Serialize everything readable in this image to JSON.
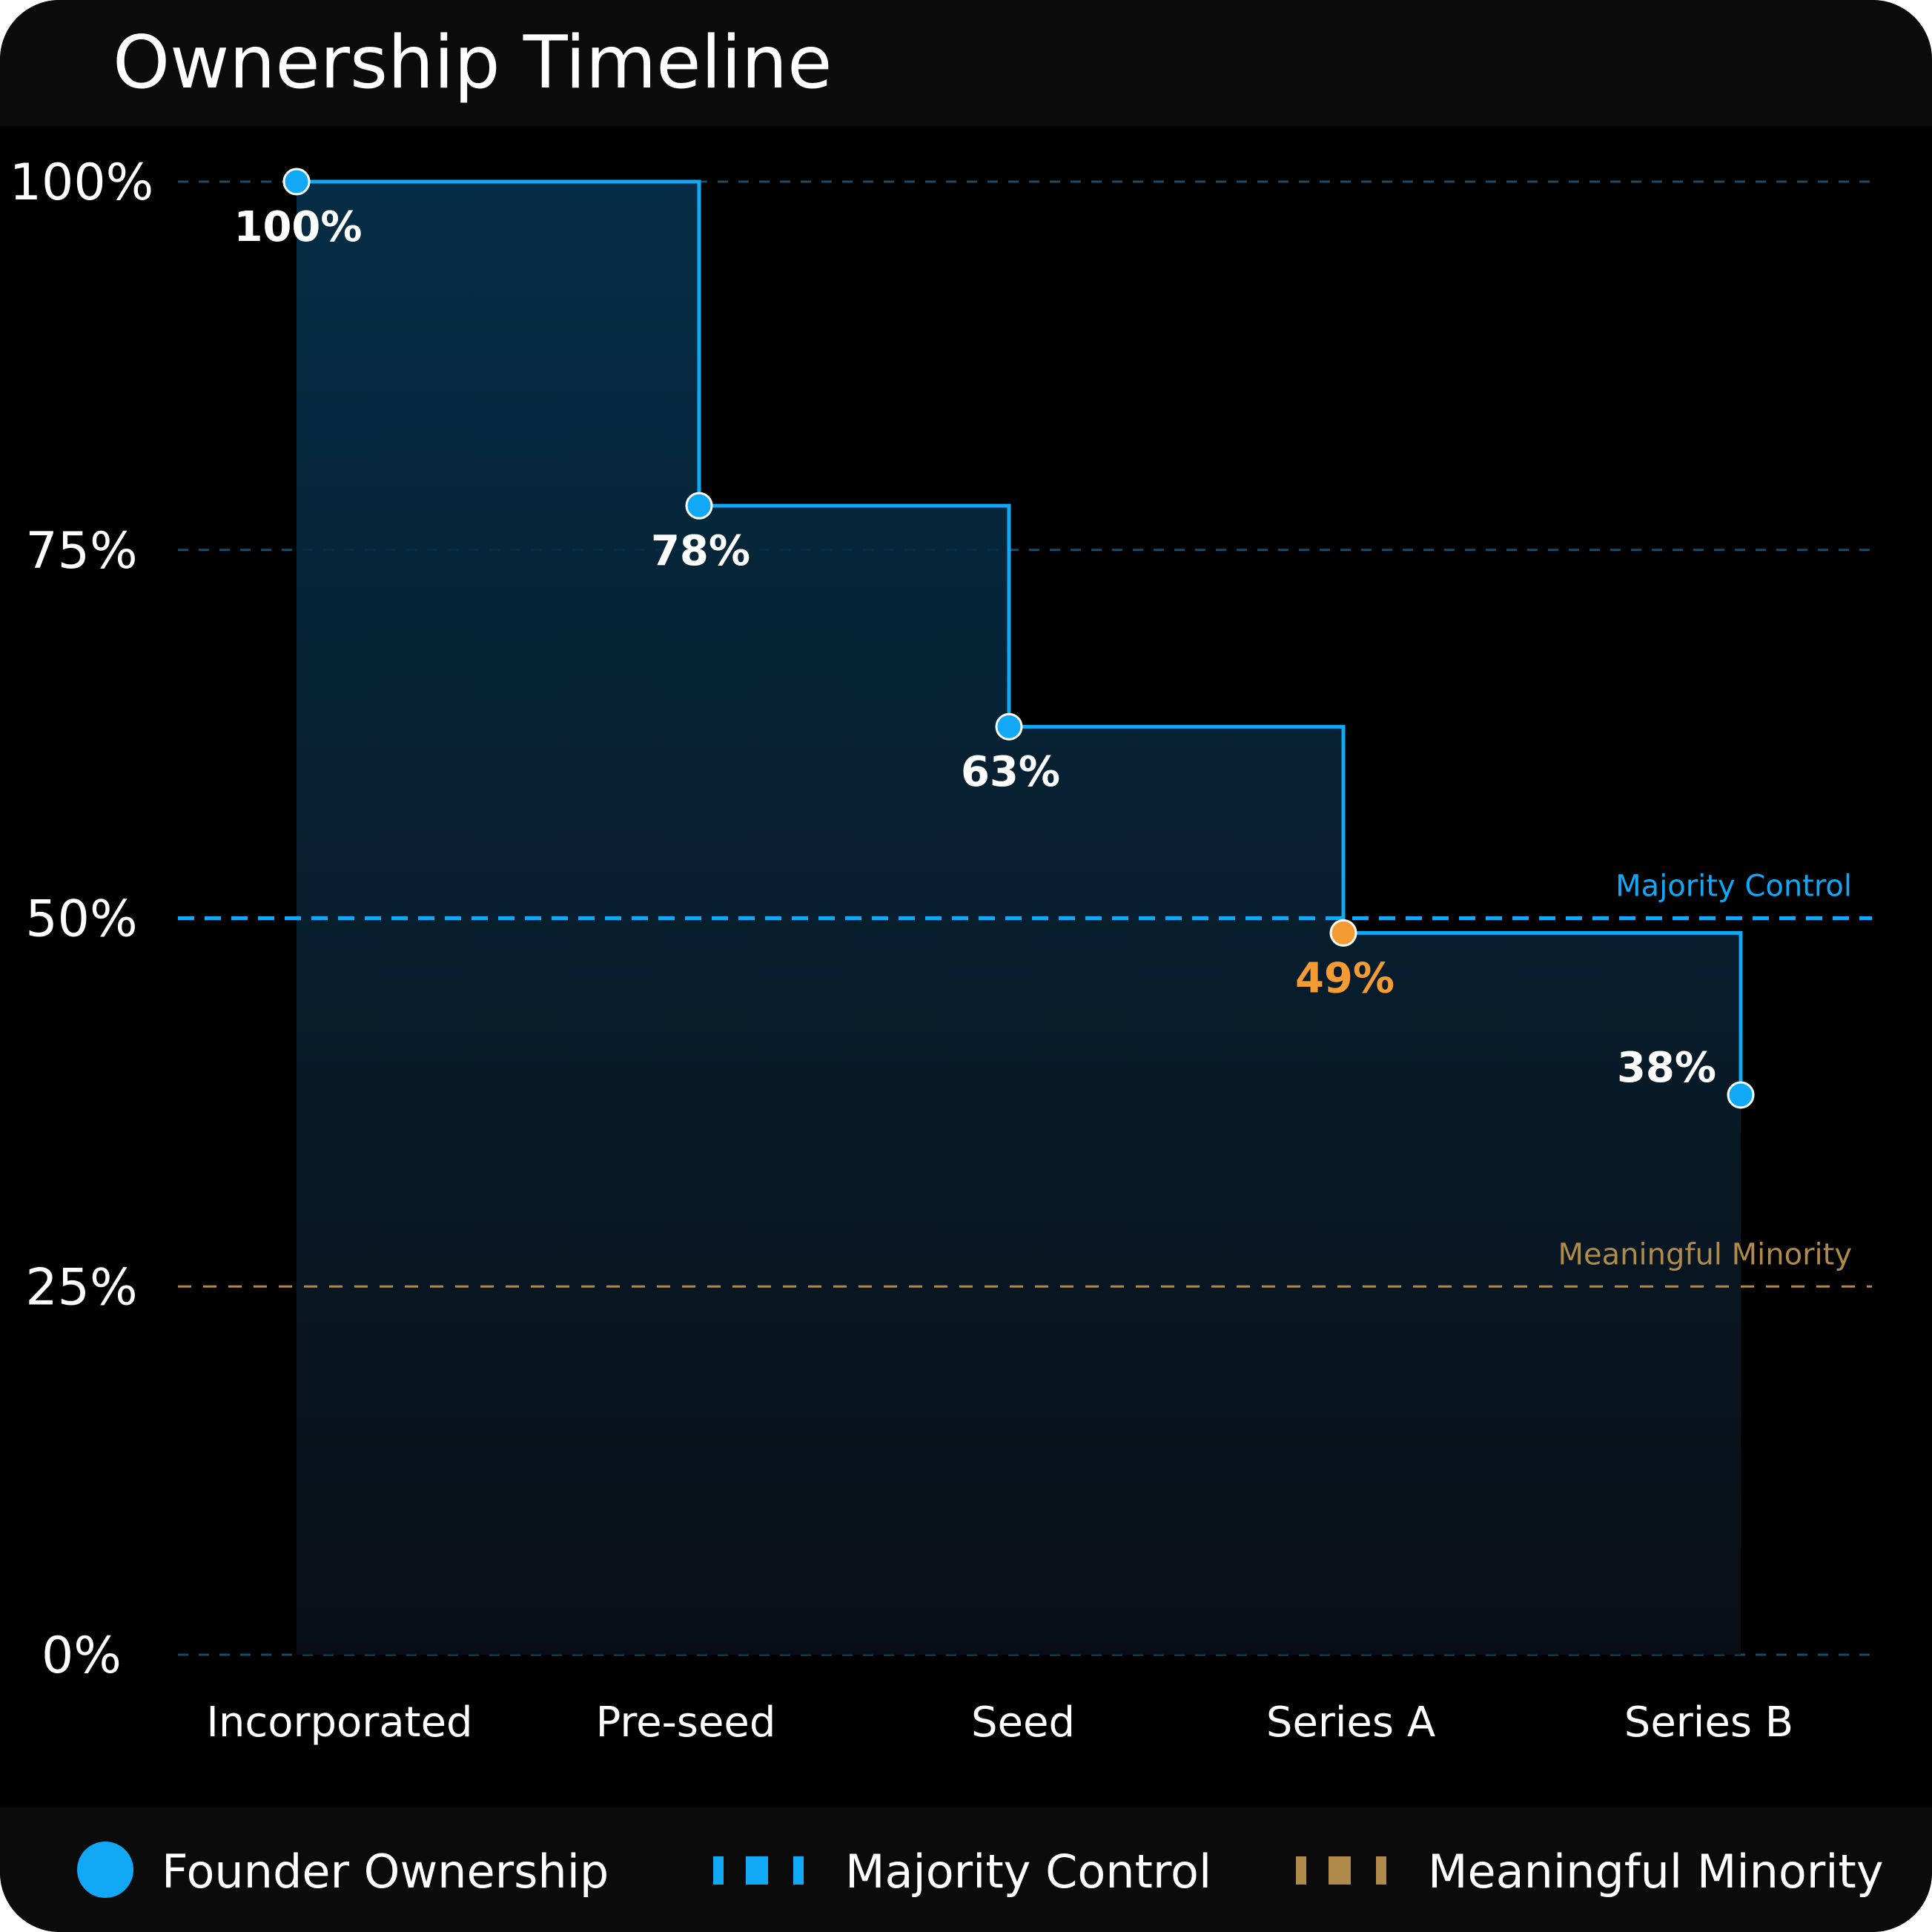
{
  "title": "Ownership Timeline",
  "colors": {
    "founder": "#11a8f5",
    "highlight": "#f39c33",
    "majority": "#11a8f5",
    "minority": "#b08a4a",
    "grid": "#1d4a66"
  },
  "chart_data": {
    "type": "line",
    "step": true,
    "title": "Ownership Timeline",
    "categories": [
      "Incorporated",
      "Pre-seed",
      "Seed",
      "Series A",
      "Series B"
    ],
    "series": [
      {
        "name": "Founder Ownership",
        "values": [
          100,
          78,
          63,
          49,
          38
        ],
        "labels": [
          "100%",
          "78%",
          "63%",
          "49%",
          "38%"
        ],
        "highlight_index": 3
      }
    ],
    "yticks": [
      "0%",
      "25%",
      "50%",
      "75%",
      "100%"
    ],
    "ytick_values": [
      0,
      25,
      50,
      75,
      100
    ],
    "ylim": [
      0,
      100
    ],
    "reference_lines": [
      {
        "name": "Majority Control",
        "value": 50
      },
      {
        "name": "Meaningful Minority",
        "value": 25
      }
    ],
    "grid": true,
    "legend_position": "bottom"
  },
  "legend": [
    {
      "label": "Founder Ownership",
      "icon": "circle-marker-icon"
    },
    {
      "label": "Majority Control",
      "icon": "blue-dash-icon"
    },
    {
      "label": "Meaningful Minority",
      "icon": "gold-dash-icon"
    }
  ]
}
